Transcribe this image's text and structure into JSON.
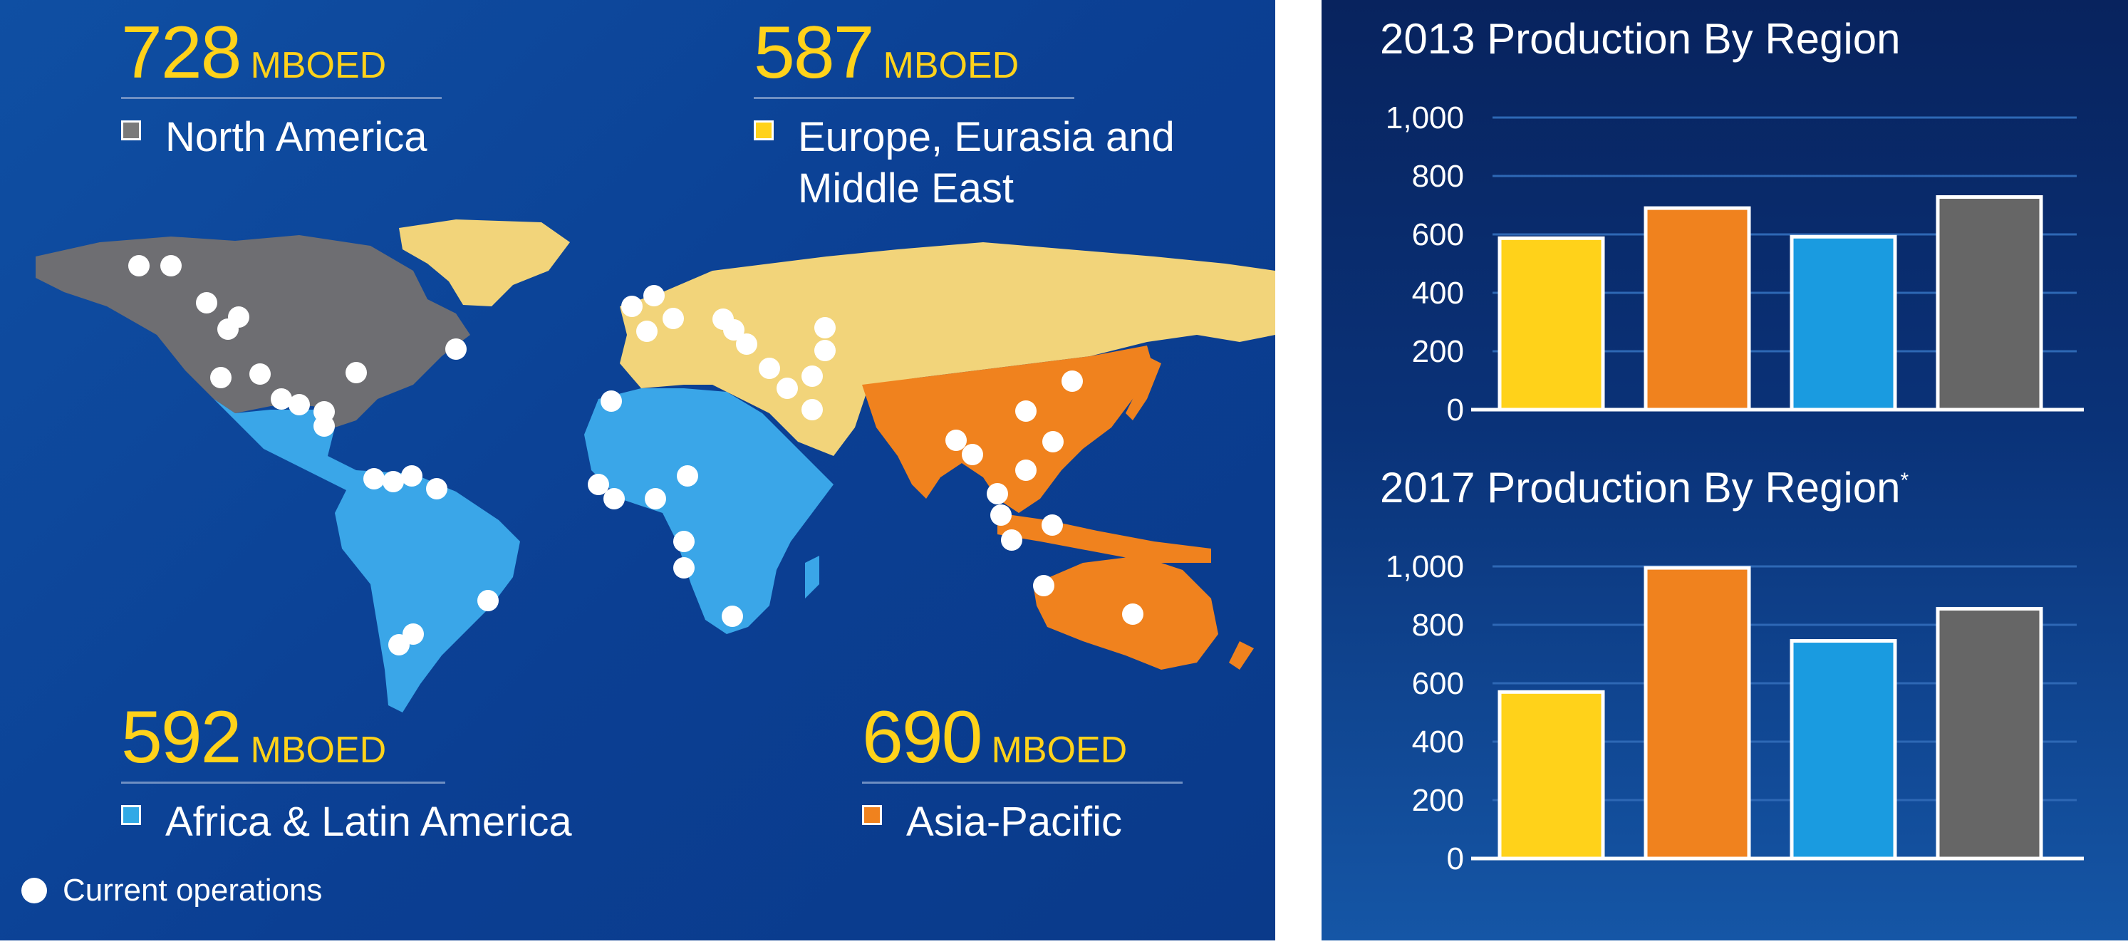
{
  "map": {
    "regions": [
      {
        "id": "north-america",
        "value": "728",
        "unit": "MBOED",
        "label": "North America",
        "color": "#7a7a7a"
      },
      {
        "id": "europe-eurasia-me",
        "value": "587",
        "unit": "MBOED",
        "label_line1": "Europe, Eurasia and",
        "label_line2": "Middle East",
        "color": "#ffd21a"
      },
      {
        "id": "africa-latam",
        "value": "592",
        "unit": "MBOED",
        "label": "Africa & Latin America",
        "color": "#31a9e6"
      },
      {
        "id": "asia-pacific",
        "value": "690",
        "unit": "MBOED",
        "label": "Asia-Pacific",
        "color": "#f0821e"
      }
    ],
    "legend": {
      "operations_label": "Current operations"
    },
    "colors": {
      "ocean": "#0b4599",
      "north_america": "#6e6e72",
      "europe": "#f2d47a",
      "africa_latam": "#3aa6e8",
      "asia_pacific": "#f0821e",
      "ops_dot": "#ffffff"
    }
  },
  "chart_data": [
    {
      "type": "bar",
      "title": "2013 Production By Region",
      "categories": [
        "Europe, Eurasia and Middle East",
        "Asia-Pacific",
        "Africa & Latin America",
        "North America"
      ],
      "values": [
        587,
        690,
        592,
        728
      ],
      "colors": [
        "#ffd21a",
        "#f0821e",
        "#1a9be0",
        "#666666"
      ],
      "ylim": [
        0,
        1000
      ],
      "yticks": [
        "0",
        "200",
        "400",
        "600",
        "800",
        "1,000"
      ],
      "grid": true
    },
    {
      "type": "bar",
      "title": "2017 Production By Region",
      "title_superscript": "*",
      "categories": [
        "Europe, Eurasia and Middle East",
        "Asia-Pacific",
        "Africa & Latin America",
        "North America"
      ],
      "values": [
        570,
        995,
        745,
        855
      ],
      "colors": [
        "#ffd21a",
        "#f0821e",
        "#1a9be0",
        "#666666"
      ],
      "ylim": [
        0,
        1000
      ],
      "yticks": [
        "0",
        "200",
        "400",
        "600",
        "800",
        "1,000"
      ],
      "grid": true
    }
  ]
}
